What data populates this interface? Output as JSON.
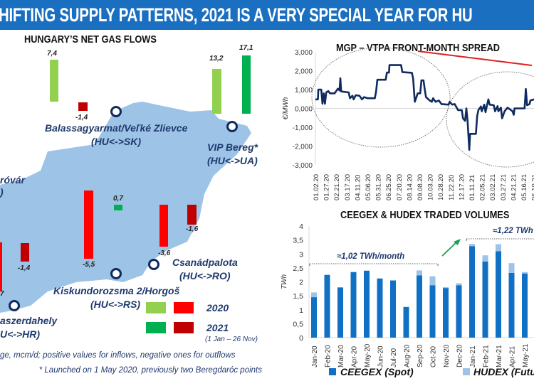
{
  "banner": {
    "title": "HIFTING SUPPLY PATTERNS, 2021 IS A VERY SPECIAL YEAR FOR HU"
  },
  "map": {
    "title": "HUNGARY’S NET GAS FLOWS",
    "points": {
      "sk": {
        "name": "Balassagyarmat/Veľké Zlievce",
        "code": "(HU<->SK)"
      },
      "ua": {
        "name": "VIP Bereg*",
        "code": "(HU<->UA)"
      },
      "at": {
        "name": "róvár",
        "code": ")"
      },
      "rs": {
        "name": "Kiskundorozsma 2/Horgoš",
        "code": "(HU<->RS)"
      },
      "ro": {
        "name": "Csanádpalota",
        "code": "(HU<->RO)"
      },
      "hr": {
        "name": "aszerdahely",
        "code": "U<->HR)"
      }
    },
    "flows": {
      "sk_2020": "7,4",
      "sk_2021": "-1,4",
      "ua_2020": "13,2",
      "ua_2021": "17,1",
      "rs_2020": "-5,5",
      "rs_2021": "0,7",
      "ro_2020": "-3,6",
      "ro_2021": "-1,6",
      "hr_2020": "7",
      "hr_2021": "-1,4"
    },
    "legend": {
      "y2020": "2020",
      "y2021": "2021",
      "period": "(1 Jan – 26 Nov)"
    },
    "colors": {
      "inflow_2020": "#92d050",
      "outflow_2020": "#ff0000",
      "inflow_2021": "#00b050",
      "outflow_2021": "#c00000",
      "map": "#9dc3e6"
    },
    "footnote1": "ge, mcm/d; positive values for inflows, negative ones for outflows",
    "footnote2": "* Launched on 1 May 2020, previously two Beregdaróc points"
  },
  "chart_data": [
    {
      "type": "line",
      "title": "MGP – VTPA FRONT-MONTH SPREAD",
      "ylabel": "€/MWh",
      "ylim": [
        -3000,
        3000
      ],
      "yticks": [
        "3,000",
        "2,000",
        "1,000",
        "0,000",
        "-1,000",
        "-2,000",
        "-3,000"
      ],
      "xticks": [
        "01.02.20",
        "01.27.20",
        "02.21.20",
        "03.17.20",
        "04.11.20",
        "05.06.20",
        "05.31.20",
        "06.25.20",
        "07.20.20",
        "08.14.20",
        "09.08.20",
        "10.03.20",
        "10.28.20",
        "11.22.20",
        "12.17.20",
        "01.11.21",
        "02.05.21",
        "03.02.21",
        "03.27.21",
        "04.21.21",
        "05.16.21",
        "06.10.21"
      ],
      "line_color": "#0e2a5e",
      "series": [
        {
          "points": [
            [
              "2020-01-02",
              480
            ],
            [
              "2020-01-08",
              480
            ],
            [
              "2020-01-09",
              1000
            ],
            [
              "2020-01-16",
              1000
            ],
            [
              "2020-01-19",
              250
            ],
            [
              "2020-01-22",
              800
            ],
            [
              "2020-01-25",
              250
            ],
            [
              "2020-01-28",
              850
            ],
            [
              "2020-02-02",
              920
            ],
            [
              "2020-02-06",
              800
            ],
            [
              "2020-02-17",
              800
            ],
            [
              "2020-02-22",
              950
            ],
            [
              "2020-02-25",
              1050
            ],
            [
              "2020-02-29",
              950
            ],
            [
              "2020-03-02",
              1600
            ],
            [
              "2020-03-04",
              900
            ],
            [
              "2020-03-22",
              850
            ],
            [
              "2020-03-25",
              540
            ],
            [
              "2020-03-31",
              670
            ],
            [
              "2020-04-03",
              480
            ],
            [
              "2020-04-08",
              700
            ],
            [
              "2020-04-17",
              670
            ],
            [
              "2020-04-23",
              480
            ],
            [
              "2020-04-28",
              600
            ],
            [
              "2020-05-07",
              540
            ],
            [
              "2020-05-24",
              540
            ],
            [
              "2020-05-27",
              920
            ],
            [
              "2020-05-30",
              1520
            ],
            [
              "2020-06-19",
              1520
            ],
            [
              "2020-06-22",
              1900
            ],
            [
              "2020-06-27",
              1900
            ],
            [
              "2020-06-28",
              2300
            ],
            [
              "2020-07-26",
              2300
            ],
            [
              "2020-07-29",
              1930
            ],
            [
              "2020-08-21",
              1890
            ],
            [
              "2020-08-24",
              1600
            ],
            [
              "2020-08-28",
              350
            ],
            [
              "2020-09-04",
              800
            ],
            [
              "2020-09-10",
              800
            ],
            [
              "2020-09-13",
              1490
            ],
            [
              "2020-09-18",
              1490
            ],
            [
              "2020-09-21",
              1000
            ],
            [
              "2020-09-24",
              600
            ],
            [
              "2020-10-03",
              420
            ],
            [
              "2020-10-08",
              350
            ],
            [
              "2020-10-11",
              540
            ],
            [
              "2020-10-17",
              350
            ],
            [
              "2020-10-25",
              420
            ],
            [
              "2020-10-31",
              230
            ],
            [
              "2020-11-17",
              200
            ],
            [
              "2020-11-20",
              350
            ],
            [
              "2020-11-26",
              200
            ],
            [
              "2020-12-02",
              230
            ],
            [
              "2020-12-10",
              -90
            ],
            [
              "2020-12-19",
              -90
            ],
            [
              "2020-12-22",
              -530
            ],
            [
              "2020-12-27",
              -660
            ],
            [
              "2020-12-30",
              0
            ],
            [
              "2021-01-02",
              -660
            ],
            [
              "2021-01-06",
              -2200
            ],
            [
              "2021-01-08",
              -1350
            ],
            [
              "2021-01-22",
              -1350
            ],
            [
              "2021-01-25",
              -400
            ],
            [
              "2021-01-28",
              -90
            ],
            [
              "2021-02-03",
              100
            ],
            [
              "2021-02-05",
              -150
            ],
            [
              "2021-02-11",
              200
            ],
            [
              "2021-02-14",
              -200
            ],
            [
              "2021-02-18",
              200
            ],
            [
              "2021-02-21",
              480
            ],
            [
              "2021-02-24",
              200
            ],
            [
              "2021-03-06",
              170
            ],
            [
              "2021-03-09",
              -150
            ],
            [
              "2021-03-15",
              120
            ],
            [
              "2021-03-17",
              -150
            ],
            [
              "2021-03-23",
              40
            ],
            [
              "2021-03-26",
              -530
            ],
            [
              "2021-04-01",
              -150
            ],
            [
              "2021-04-08",
              40
            ],
            [
              "2021-04-20",
              -150
            ],
            [
              "2021-04-23",
              -340
            ],
            [
              "2021-04-25",
              0
            ],
            [
              "2021-05-19",
              0
            ],
            [
              "2021-05-22",
              1030
            ],
            [
              "2021-05-25",
              170
            ],
            [
              "2021-05-31",
              230
            ],
            [
              "2021-06-02",
              420
            ],
            [
              "2021-06-11",
              480
            ]
          ]
        }
      ]
    },
    {
      "type": "bar",
      "stacked": true,
      "title": "CEEGEX & HUDEX TRADED VOLUMES",
      "ylabel": "TWh",
      "ylim": [
        0,
        4
      ],
      "yticks": [
        "4",
        "3,5",
        "3",
        "2,5",
        "2",
        "1,5",
        "1",
        "0,5",
        "0"
      ],
      "categories": [
        "Jan-20",
        "Feb-20",
        "Mar-20",
        "Apr-20",
        "May-20",
        "Jun-20",
        "Jul-20",
        "Aug-20",
        "Sep-20",
        "Oct-20",
        "Nov-20",
        "Dec-20",
        "Jan-21",
        "Feb-21",
        "Mar-21",
        "Apr-21",
        "May-21"
      ],
      "series": [
        {
          "name": "CEEGEX (Spot)",
          "color": "#1070c4",
          "values": [
            1.45,
            2.25,
            1.8,
            2.35,
            2.4,
            2.12,
            2.05,
            1.1,
            2.23,
            1.88,
            1.78,
            1.88,
            3.28,
            2.73,
            3.1,
            2.32,
            2.3
          ]
        },
        {
          "name": "HUDEX (Futu",
          "color": "#9dc3e6",
          "values": [
            0.17,
            0,
            0,
            0,
            0,
            0,
            0,
            0,
            0.18,
            0.32,
            0.03,
            0.07,
            0.08,
            0.22,
            0.25,
            0.35,
            0.05
          ]
        }
      ],
      "annotations": {
        "avg2020": "≈1,02 TWh/month",
        "avg2021": "≈1,22 TWh"
      },
      "legend": "bottom"
    }
  ]
}
